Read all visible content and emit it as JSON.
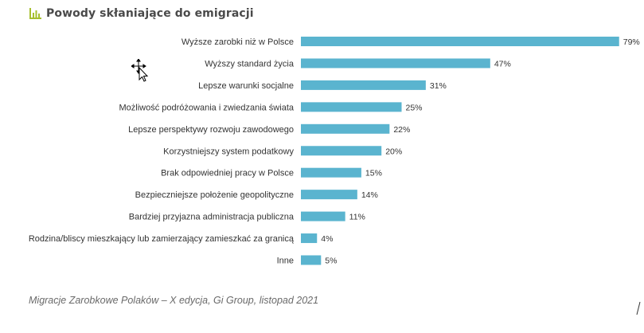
{
  "title": "Powody skłaniające do emigracji",
  "source": "Migracje Zarobkowe Polaków – X edycja, Gi Group, listopad 2021",
  "colors": {
    "bar": "#5ab4cf",
    "title_icon": "#a6bf2e",
    "text": "#333333"
  },
  "icons": {
    "title": "bar-chart-icon"
  },
  "chart_data": {
    "type": "bar",
    "orientation": "horizontal",
    "categories": [
      "Wyższe zarobki niż w Polsce",
      "Wyższy standard życia",
      "Lepsze warunki socjalne",
      "Możliwość podróżowania i zwiedzania świata",
      "Lepsze perspektywy rozwoju zawodowego",
      "Korzystniejszy system podatkowy",
      "Brak odpowiedniej pracy w Polsce",
      "Bezpieczniejsze położenie geopolityczne",
      "Bardziej przyjazna administracja publiczna",
      "Rodzina/bliscy mieszkający lub zamierzający zamieszkać za granicą",
      "Inne"
    ],
    "values": [
      79,
      47,
      31,
      25,
      22,
      20,
      15,
      14,
      11,
      4,
      5
    ],
    "labels": [
      "79%",
      "47%",
      "31%",
      "25%",
      "22%",
      "20%",
      "15%",
      "14%",
      "11%",
      "4%",
      "5%"
    ],
    "grid": false,
    "legend": "none"
  }
}
